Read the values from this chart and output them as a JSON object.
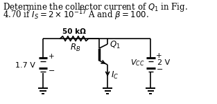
{
  "title_line1": "Determine the collector current of $Q_1$ in Fig.",
  "title_line2": "4.70 if $I_S = 2 \\times 10^{-17}$ A and $\\beta = 100$.",
  "bg_color": "#ffffff",
  "label_50k": "50 kΩ",
  "label_RB": "$R_B$",
  "label_Q1": "$Q_1$",
  "label_VCC": "$V_{CC}$",
  "label_2V": "2 V",
  "label_17V": "1.7 V",
  "label_IC": "$I_C$",
  "label_plus_left": "+",
  "label_minus_left": "−",
  "label_plus_vcc": "+",
  "label_minus_vcc": "−"
}
